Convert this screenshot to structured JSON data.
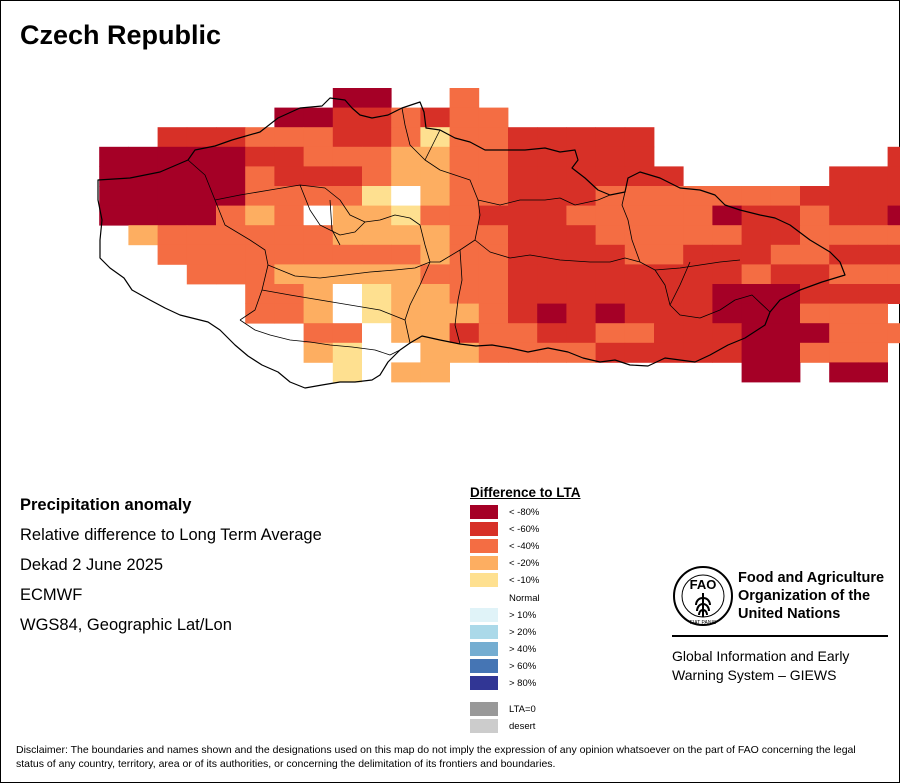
{
  "title": "Czech Republic",
  "info": {
    "heading": "Precipitation anomaly",
    "line1": "Relative difference to Long Term Average",
    "line2": "Dekad 2 June 2025",
    "line3": "ECMWF",
    "line4": "WGS84, Geographic Lat/Lon"
  },
  "legend": {
    "title": "Difference to LTA",
    "items": [
      {
        "label": "< -80%",
        "color": "#a50026"
      },
      {
        "label": "< -60%",
        "color": "#d73027"
      },
      {
        "label": "< -40%",
        "color": "#f46d43"
      },
      {
        "label": "< -20%",
        "color": "#fdae61"
      },
      {
        "label": "< -10%",
        "color": "#fee090"
      },
      {
        "label": "Normal",
        "color": "#ffffff"
      },
      {
        "label": "> 10%",
        "color": "#e0f3f8"
      },
      {
        "label": "> 20%",
        "color": "#abd9e9"
      },
      {
        "label": "> 40%",
        "color": "#74add1"
      },
      {
        "label": "> 60%",
        "color": "#4575b4"
      },
      {
        "label": "> 80%",
        "color": "#313695"
      },
      {
        "label": "LTA=0",
        "color": "#999999"
      },
      {
        "label": "desert",
        "color": "#cccccc"
      }
    ]
  },
  "fao": {
    "name_line1": "Food and Agriculture",
    "name_line2": "Organization of the",
    "name_line3": "United Nations",
    "emblem_text": "FAO",
    "motto": "FIAT PANIS",
    "giews_line1": "Global Information and Early",
    "giews_line2": "Warning System – GIEWS"
  },
  "disclaimer": "Disclaimer: The boundaries and names shown and the designations used on this map do not imply the expression of any opinion whatsoever on the part of FAO concerning the legal status of any country, territory, area or of its authorities, or concerning the delimitation of its frontiers and boundaries.",
  "map_grid": {
    "legend_codes": "0 = < -80%, 1 = < -60%, 2 = < -40%, 3 = < -20%, 4 = < -10%, 5 = Normal",
    "rows": [
      ".........00..2..................",
      ".......00112122.................",
      "...11122211242211111............",
      ".0000011222332211111........1...",
      ".00000211123322111111.....11111.",
      ".00000222245322111222222211111..",
      ".00002325334221112222201121101..",
      "..3222222333322111222221122222..",
      "...22222222232211112211122111222",
      "....22233333222111111112112222..",
      "......22354332211111110001111...",
      "......2235433321010111000222....",
      "........225331221122111000222...",
      "........34553322221111100222....",
      ".........4533..........00.00...."
    ]
  }
}
